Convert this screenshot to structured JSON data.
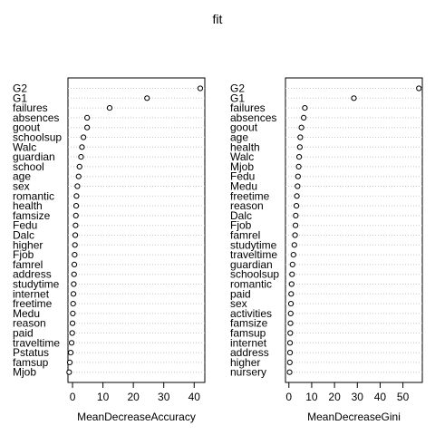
{
  "title": "fit",
  "chart_data": [
    {
      "type": "scatter",
      "style": "dotchart",
      "xlabel": "MeanDecreaseAccuracy",
      "xlim": [
        -1.5,
        43.5
      ],
      "xticks": [
        0,
        10,
        20,
        30,
        40
      ],
      "categories": [
        "G2",
        "G1",
        "failures",
        "absences",
        "goout",
        "schoolsup",
        "Walc",
        "guardian",
        "school",
        "age",
        "sex",
        "romantic",
        "health",
        "famsize",
        "Fedu",
        "Dalc",
        "higher",
        "Fjob",
        "famrel",
        "address",
        "studytime",
        "internet",
        "freetime",
        "Medu",
        "reason",
        "paid",
        "traveltime",
        "Pstatus",
        "famsup",
        "Mjob"
      ],
      "values": [
        42.0,
        24.5,
        12.2,
        4.8,
        4.8,
        3.6,
        3.1,
        2.8,
        2.3,
        2.0,
        1.6,
        1.3,
        1.2,
        1.1,
        1.0,
        0.9,
        0.8,
        0.7,
        0.6,
        0.5,
        0.4,
        0.3,
        0.2,
        0.1,
        0.0,
        -0.1,
        -0.3,
        -0.6,
        -0.9,
        -1.1
      ]
    },
    {
      "type": "scatter",
      "style": "dotchart",
      "xlabel": "MeanDecreaseGini",
      "xlim": [
        -1.5,
        58.5
      ],
      "xticks": [
        0,
        10,
        20,
        30,
        40,
        50
      ],
      "categories": [
        "G2",
        "G1",
        "failures",
        "absences",
        "goout",
        "age",
        "health",
        "Walc",
        "Mjob",
        "Fedu",
        "Medu",
        "freetime",
        "reason",
        "Dalc",
        "Fjob",
        "famrel",
        "studytime",
        "traveltime",
        "guardian",
        "schoolsup",
        "romantic",
        "paid",
        "sex",
        "activities",
        "famsize",
        "famsup",
        "internet",
        "address",
        "higher",
        "nursery"
      ],
      "values": [
        57.0,
        28.5,
        7.0,
        6.5,
        5.5,
        5.0,
        4.8,
        4.5,
        4.3,
        4.0,
        3.8,
        3.5,
        3.3,
        3.0,
        2.9,
        2.7,
        2.4,
        2.0,
        1.6,
        1.4,
        1.2,
        1.0,
        0.9,
        0.8,
        0.7,
        0.6,
        0.5,
        0.5,
        0.4,
        0.3
      ]
    }
  ]
}
